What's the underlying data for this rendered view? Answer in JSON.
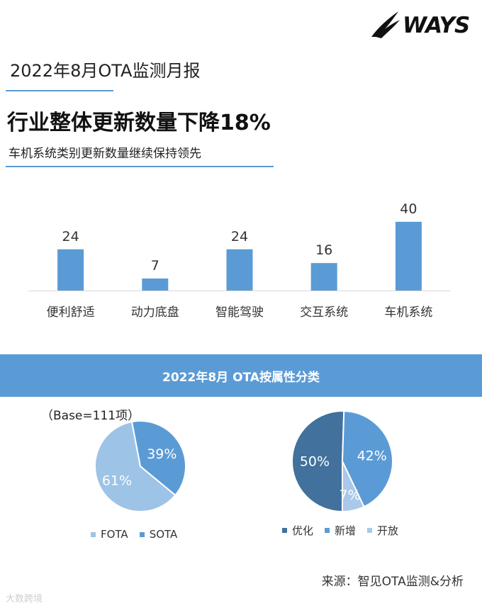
{
  "brand": {
    "name": "WAYS"
  },
  "report_title": "2022年8月OTA监测月报",
  "headline": "行业整体更新数量下降18%",
  "subheadline": "车机系统类别更新数量继续保持领先",
  "colors": {
    "accent": "#5b9bd5",
    "light_blue": "#9dc3e6",
    "dark_blue": "#41719c",
    "mid_blue": "#5b9bd5",
    "pale_blue": "#a9c8ea"
  },
  "chart_data": [
    {
      "type": "bar",
      "categories": [
        "便利舒适",
        "动力底盘",
        "智能驾驶",
        "交互系统",
        "车机系统"
      ],
      "values": [
        24,
        7,
        24,
        16,
        40
      ],
      "ylim": [
        0,
        40
      ]
    },
    {
      "type": "pie",
      "title": "2022年8月 OTA按属性分类",
      "note": "（Base=111项）",
      "labels": [
        "FOTA",
        "SOTA"
      ],
      "values": [
        61,
        39
      ],
      "value_labels": [
        "61%",
        "39%"
      ],
      "colors": [
        "#9dc3e6",
        "#5b9bd5"
      ]
    },
    {
      "type": "pie",
      "labels": [
        "优化",
        "新增",
        "开放"
      ],
      "values": [
        50,
        42,
        7
      ],
      "value_labels": [
        "50%",
        "42%",
        "7%"
      ],
      "colors": [
        "#41719c",
        "#5b9bd5",
        "#a9c8ea"
      ]
    }
  ],
  "banner_title": "2022年8月 OTA按属性分类",
  "base_note": "（Base=111项）",
  "source": "来源：智见OTA监测&分析",
  "watermark": "大数跨境"
}
